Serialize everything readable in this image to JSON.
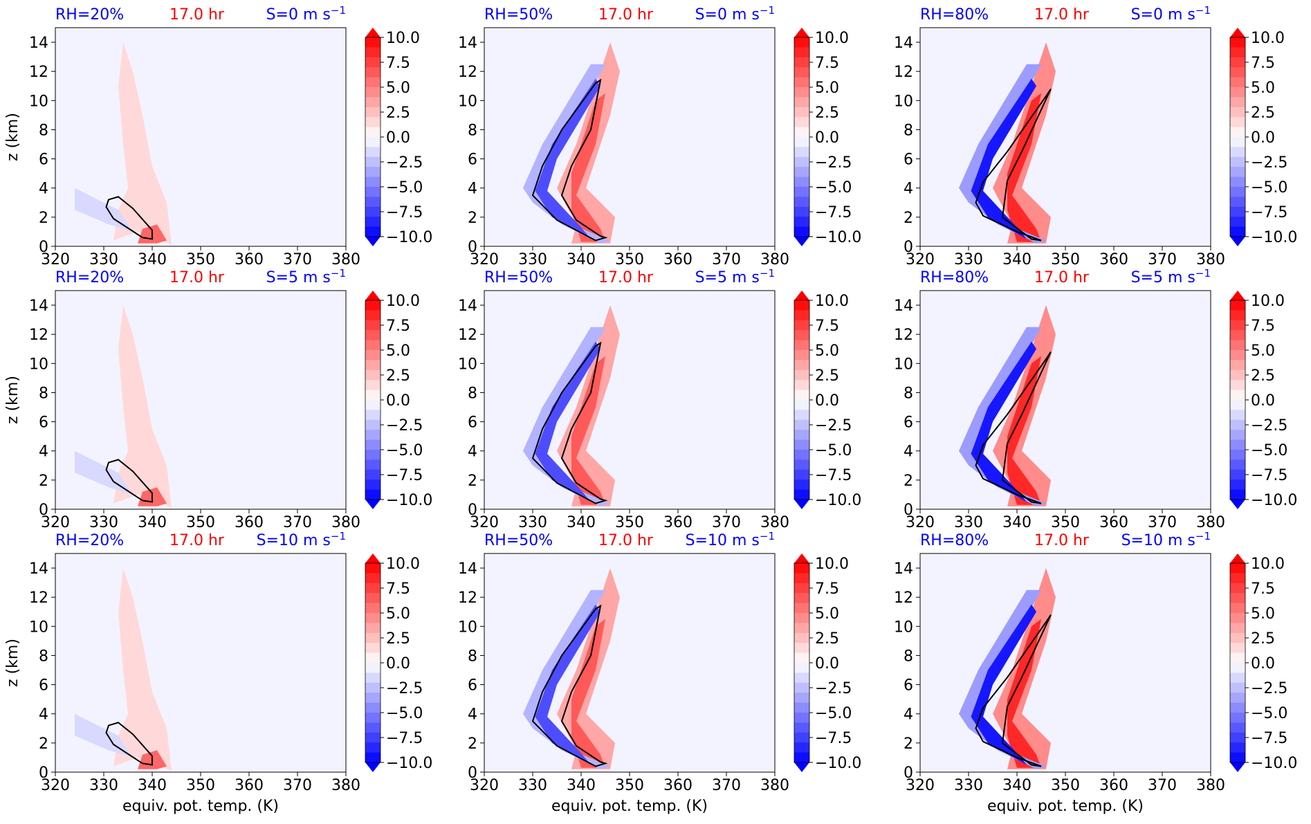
{
  "colors": {
    "rh_label": "#0000ff",
    "time_label": "#ff0000",
    "shear_label": "#0000ff",
    "background": "#f3f3ff",
    "contour": "#000000",
    "cmap_neg": "#0000ff",
    "cmap_pos": "#ff0000",
    "cmap_mid": "#ffffff"
  },
  "shared": {
    "xlabel": "equiv. pot. temp. (K)",
    "ylabel": "z (km)",
    "time_label": "17.0 hr",
    "shear_unit": "m s",
    "shear_exp": "−1",
    "x_ticks": [
      "320",
      "330",
      "340",
      "350",
      "360",
      "370",
      "380"
    ],
    "y_ticks": [
      "0",
      "2",
      "4",
      "6",
      "8",
      "10",
      "12",
      "14"
    ],
    "colorbar_ticks": [
      "10.0",
      "7.5",
      "5.0",
      "2.5",
      "0.0",
      "−2.5",
      "−5.0",
      "−7.5",
      "−10.0"
    ]
  },
  "chart_data": [
    {
      "type": "heatmap",
      "row": 0,
      "col": 0,
      "rh_label": "RH=20%",
      "shear_label": "S=0",
      "rh": 20,
      "shear": 0,
      "xlim": [
        320,
        380
      ],
      "ylim": [
        0,
        15
      ],
      "clim": [
        -10,
        10
      ]
    },
    {
      "type": "heatmap",
      "row": 0,
      "col": 1,
      "rh_label": "RH=50%",
      "shear_label": "S=0",
      "rh": 50,
      "shear": 0,
      "xlim": [
        320,
        380
      ],
      "ylim": [
        0,
        15
      ],
      "clim": [
        -10,
        10
      ]
    },
    {
      "type": "heatmap",
      "row": 0,
      "col": 2,
      "rh_label": "RH=80%",
      "shear_label": "S=0",
      "rh": 80,
      "shear": 0,
      "xlim": [
        320,
        380
      ],
      "ylim": [
        0,
        15
      ],
      "clim": [
        -10,
        10
      ]
    },
    {
      "type": "heatmap",
      "row": 1,
      "col": 0,
      "rh_label": "RH=20%",
      "shear_label": "S=5",
      "rh": 20,
      "shear": 5,
      "xlim": [
        320,
        380
      ],
      "ylim": [
        0,
        15
      ],
      "clim": [
        -10,
        10
      ]
    },
    {
      "type": "heatmap",
      "row": 1,
      "col": 1,
      "rh_label": "RH=50%",
      "shear_label": "S=5",
      "rh": 50,
      "shear": 5,
      "xlim": [
        320,
        380
      ],
      "ylim": [
        0,
        15
      ],
      "clim": [
        -10,
        10
      ]
    },
    {
      "type": "heatmap",
      "row": 1,
      "col": 2,
      "rh_label": "RH=80%",
      "shear_label": "S=5",
      "rh": 80,
      "shear": 5,
      "xlim": [
        320,
        380
      ],
      "ylim": [
        0,
        15
      ],
      "clim": [
        -10,
        10
      ]
    },
    {
      "type": "heatmap",
      "row": 2,
      "col": 0,
      "rh_label": "RH=20%",
      "shear_label": "S=10",
      "rh": 20,
      "shear": 10,
      "xlim": [
        320,
        380
      ],
      "ylim": [
        0,
        15
      ],
      "clim": [
        -10,
        10
      ]
    },
    {
      "type": "heatmap",
      "row": 2,
      "col": 1,
      "rh_label": "RH=50%",
      "shear_label": "S=10",
      "rh": 50,
      "shear": 10,
      "xlim": [
        320,
        380
      ],
      "ylim": [
        0,
        15
      ],
      "clim": [
        -10,
        10
      ]
    },
    {
      "type": "heatmap",
      "row": 2,
      "col": 2,
      "rh_label": "RH=80%",
      "shear_label": "S=10",
      "rh": 80,
      "shear": 10,
      "xlim": [
        320,
        380
      ],
      "ylim": [
        0,
        15
      ],
      "clim": [
        -10,
        10
      ]
    }
  ]
}
